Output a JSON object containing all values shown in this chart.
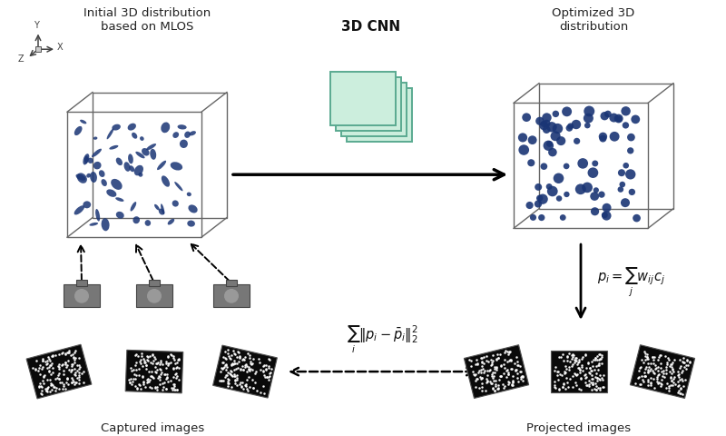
{
  "bg_color": "#ffffff",
  "title_3dcnn": "3D CNN",
  "title_initial": "Initial 3D distribution\nbased on MLOS",
  "title_optimized": "Optimized 3D\ndistribution",
  "label_captured": "Captured images",
  "label_projected": "Projected images",
  "cnn_color_fill": "#cceedd",
  "cnn_color_edge": "#5aaa90",
  "box_edge_color": "#666666",
  "particle_color_initial": "#1a3575",
  "particle_color_optimized": "#1a3575",
  "camera_body_color": "#777777",
  "arrow_color": "#000000",
  "font_color": "#222222"
}
